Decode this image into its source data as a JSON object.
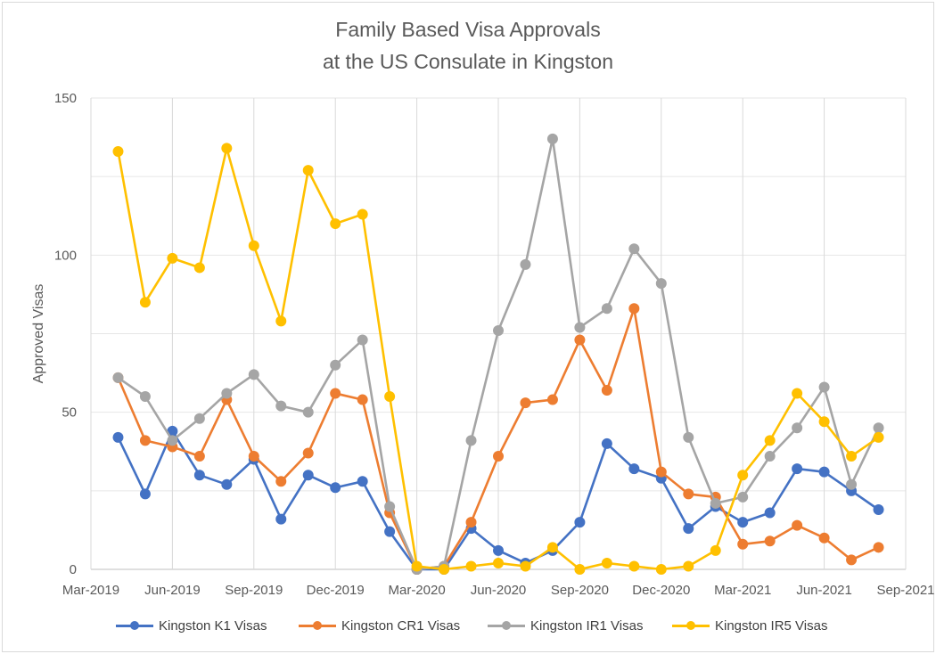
{
  "chart_data": {
    "type": "line",
    "title": "Family Based Visa Approvals",
    "subtitle": "at the US Consulate in Kingston",
    "xlabel": "",
    "ylabel": "Approved Visas",
    "ylim": [
      0,
      150
    ],
    "yticks": [
      0,
      50,
      100,
      150
    ],
    "xticks": [
      "Mar-2019",
      "Jun-2019",
      "Sep-2019",
      "Dec-2019",
      "Mar-2020",
      "Jun-2020",
      "Sep-2020",
      "Dec-2020",
      "Mar-2021",
      "Jun-2021",
      "Sep-2021"
    ],
    "x": [
      "2019-04",
      "2019-05",
      "2019-06",
      "2019-07",
      "2019-08",
      "2019-09",
      "2019-10",
      "2019-11",
      "2019-12",
      "2020-01",
      "2020-02",
      "2020-03",
      "2020-04",
      "2020-05",
      "2020-06",
      "2020-07",
      "2020-08",
      "2020-09",
      "2020-10",
      "2020-11",
      "2020-12",
      "2021-01",
      "2021-02",
      "2021-03",
      "2021-04",
      "2021-05",
      "2021-06",
      "2021-07",
      "2021-08",
      "2021-09"
    ],
    "grid": true,
    "legend_position": "bottom",
    "series": [
      {
        "name": "Kingston K1 Visas",
        "color": "#4472c4",
        "values": [
          42,
          24,
          44,
          30,
          27,
          35,
          16,
          30,
          26,
          28,
          12,
          0,
          0,
          13,
          6,
          2,
          6,
          15,
          40,
          32,
          29,
          13,
          20,
          15,
          18,
          32,
          31,
          25,
          19,
          null
        ]
      },
      {
        "name": "Kingston CR1 Visas",
        "color": "#ed7d31",
        "values": [
          61,
          41,
          39,
          36,
          54,
          36,
          28,
          37,
          56,
          54,
          18,
          0,
          1,
          15,
          36,
          53,
          54,
          73,
          57,
          83,
          31,
          24,
          23,
          8,
          9,
          14,
          10,
          3,
          7,
          null
        ]
      },
      {
        "name": "Kingston IR1 Visas",
        "color": "#a5a5a5",
        "values": [
          61,
          55,
          41,
          48,
          56,
          62,
          52,
          50,
          65,
          73,
          20,
          0,
          1,
          41,
          76,
          97,
          137,
          77,
          83,
          102,
          91,
          42,
          21,
          23,
          36,
          45,
          58,
          27,
          45,
          null
        ]
      },
      {
        "name": "Kingston IR5 Visas",
        "color": "#ffc000",
        "values": [
          133,
          85,
          99,
          96,
          134,
          103,
          79,
          127,
          110,
          113,
          55,
          1,
          0,
          1,
          2,
          1,
          7,
          0,
          2,
          1,
          0,
          1,
          6,
          30,
          41,
          56,
          47,
          36,
          42,
          null
        ]
      }
    ]
  }
}
